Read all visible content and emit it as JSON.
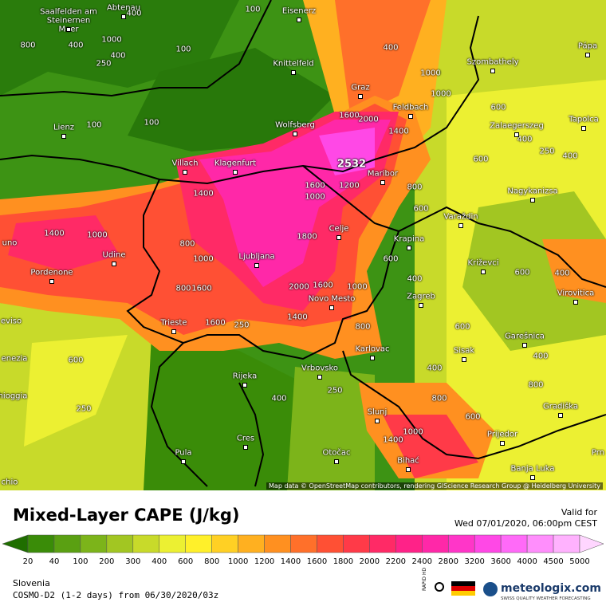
{
  "map": {
    "cities": [
      "Abtenau",
      "Eisenerz",
      "Saalfelden am Steinernen Meer",
      "Knittelfeld",
      "Graz",
      "Feldbach",
      "Szombathely",
      "Pápa",
      "Lienz",
      "Wolfsberg",
      "Zalaegerszeg",
      "Tapolca",
      "Villach",
      "Klagenfurt",
      "Maribor",
      "Nagykanizsa",
      "Varaždin",
      "Udine",
      "Celje",
      "Krapina",
      "Križevci",
      "Ljubljana",
      "Pordenone",
      "Zagreb",
      "Virovitica",
      "Novo Mesto",
      "Trieste",
      "Karlovac",
      "Sisak",
      "Garešnica",
      "Rijeka",
      "Vrbovsko",
      "Slunj",
      "Gradiška",
      "Prijedor",
      "Cres",
      "Pula",
      "Otočac",
      "Bihać",
      "Banja Luka",
      "uno",
      "eviso",
      "enezia",
      "hioggia",
      "chio",
      "Prn"
    ],
    "contour_labels": [
      800,
      400,
      1000,
      400,
      100,
      400,
      250,
      100,
      400,
      1000,
      1600,
      2000,
      1400,
      1000,
      600,
      400,
      250,
      600,
      400,
      100,
      100,
      1400,
      1000,
      1600,
      1200,
      800,
      600,
      1000,
      1400,
      800,
      1800,
      1000,
      800,
      1600,
      2000,
      1600,
      1000,
      600,
      400,
      600,
      400,
      1600,
      250,
      1400,
      800,
      400,
      600,
      400,
      600,
      250,
      400,
      250,
      1400,
      1000,
      800,
      600,
      800
    ],
    "max_label": 2532,
    "attribution": "Map data © OpenStreetMap contributors, rendering GIScience Research Group @ Heidelberg University"
  },
  "legend": {
    "title": "Mixed-Layer CAPE (J/kg)",
    "valid_label": "Valid for",
    "valid_time": "Wed 07/01/2020, 06:00pm CEST",
    "levels": [
      20,
      40,
      100,
      200,
      300,
      400,
      600,
      800,
      1000,
      1200,
      1400,
      1600,
      1800,
      2000,
      2200,
      2400,
      2800,
      3200,
      3600,
      4000,
      4500,
      5000
    ],
    "colors": [
      "#1f6e00",
      "#3a8c08",
      "#5aa012",
      "#7cb41a",
      "#a2c622",
      "#c8da2a",
      "#ecf032",
      "#fff02a",
      "#ffd024",
      "#ffb020",
      "#ff9020",
      "#ff702a",
      "#ff5034",
      "#ff3a48",
      "#ff2a66",
      "#ff2288",
      "#ff28a8",
      "#ff36c8",
      "#ff48e6",
      "#ff6af8",
      "#ff8efc",
      "#ffb2fe",
      "#ffd6ff"
    ]
  },
  "footer": {
    "region": "Slovenia",
    "model": "COSMO-D2 (1-2 days) from 06/30/2020/03z",
    "icon_label": "RAPID HD",
    "brand": "meteologix.com",
    "tagline": "SWISS QUALITY WEATHER FORECASTING"
  }
}
